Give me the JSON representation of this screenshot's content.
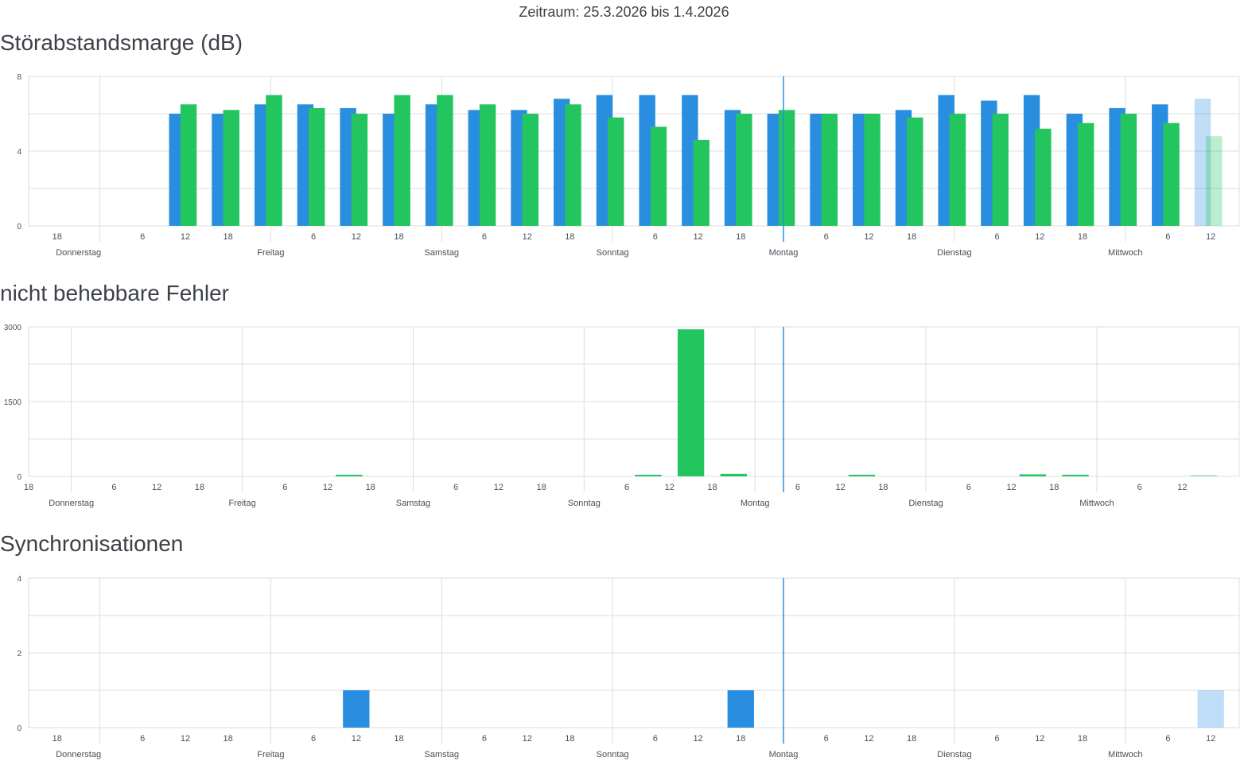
{
  "header": {
    "period": "Zeitraum: 25.3.2026 bis 1.4.2026"
  },
  "colors": {
    "downstream": "#2a8ee0",
    "upstream": "#22c55e",
    "now_line": "#2a8ee0",
    "grid": "#dddddd"
  },
  "chart_data": [
    {
      "id": "snr",
      "type": "bar",
      "title": "Störabstandsmarge (dB)",
      "ylim": [
        0,
        8
      ],
      "yticks": [
        0,
        4,
        8
      ],
      "x_start_hour": 14,
      "x_end_hour": 178,
      "bucket_hours": 6,
      "now_hour": 120,
      "hour_tick_labels": [
        {
          "h": 18,
          "label": "18"
        },
        {
          "h": 30,
          "label": "6"
        },
        {
          "h": 36,
          "label": "12"
        },
        {
          "h": 42,
          "label": "18"
        },
        {
          "h": 54,
          "label": "6"
        },
        {
          "h": 60,
          "label": "12"
        },
        {
          "h": 66,
          "label": "18"
        },
        {
          "h": 78,
          "label": "6"
        },
        {
          "h": 84,
          "label": "12"
        },
        {
          "h": 90,
          "label": "18"
        },
        {
          "h": 102,
          "label": "6"
        },
        {
          "h": 108,
          "label": "12"
        },
        {
          "h": 114,
          "label": "18"
        },
        {
          "h": 126,
          "label": "6"
        },
        {
          "h": 132,
          "label": "12"
        },
        {
          "h": 138,
          "label": "18"
        },
        {
          "h": 150,
          "label": "6"
        },
        {
          "h": 156,
          "label": "12"
        },
        {
          "h": 162,
          "label": "18"
        },
        {
          "h": 174,
          "label": "6"
        },
        {
          "h": 180,
          "label": "12"
        }
      ],
      "day_labels": [
        {
          "h": 21,
          "label": "Donnerstag"
        },
        {
          "h": 48,
          "label": "Freitag"
        },
        {
          "h": 72,
          "label": "Samstag"
        },
        {
          "h": 96,
          "label": "Sonntag"
        },
        {
          "h": 120,
          "label": "Montag"
        },
        {
          "h": 144,
          "label": "Dienstag"
        },
        {
          "h": 168,
          "label": "Mittwoch"
        }
      ],
      "day_boundaries": [
        24,
        48,
        72,
        96,
        120,
        144,
        168
      ],
      "buckets": [
        36,
        42,
        48,
        54,
        60,
        66,
        72,
        78,
        84,
        90,
        96,
        102,
        108,
        114,
        120,
        126,
        132,
        138,
        144,
        150,
        156,
        162,
        168,
        174,
        180
      ],
      "series": [
        {
          "key": "downstream",
          "offset": 0,
          "values": [
            6,
            6,
            6.5,
            6.5,
            6.3,
            6,
            6.5,
            6.2,
            6.2,
            6.8,
            7,
            7,
            7,
            6.2,
            6,
            6,
            6,
            6.2,
            7,
            6.7,
            7,
            6,
            6.3,
            6.5,
            6.8
          ]
        },
        {
          "key": "upstream",
          "offset": 1,
          "values": [
            6.5,
            6.2,
            7,
            6.3,
            6,
            7,
            7,
            6.5,
            6,
            6.5,
            5.8,
            5.3,
            4.6,
            6,
            6.2,
            6,
            6,
            5.8,
            6,
            6,
            5.2,
            5.5,
            6,
            5.5,
            4.8
          ]
        }
      ],
      "current_bucket": 180
    },
    {
      "id": "fec",
      "type": "bar",
      "title": "nicht behebbare Fehler",
      "ylim": [
        0,
        3000
      ],
      "yticks": [
        0,
        1500,
        3000
      ],
      "x_start_hour": 14,
      "x_end_hour": 182,
      "bucket_hours": 6,
      "now_hour": 120,
      "hour_tick_labels": [
        {
          "h": 14,
          "label": "18"
        },
        {
          "h": 26,
          "label": "6"
        },
        {
          "h": 32,
          "label": "12"
        },
        {
          "h": 38,
          "label": "18"
        },
        {
          "h": 50,
          "label": "6"
        },
        {
          "h": 56,
          "label": "12"
        },
        {
          "h": 62,
          "label": "18"
        },
        {
          "h": 74,
          "label": "6"
        },
        {
          "h": 80,
          "label": "12"
        },
        {
          "h": 86,
          "label": "18"
        },
        {
          "h": 98,
          "label": "6"
        },
        {
          "h": 104,
          "label": "12"
        },
        {
          "h": 110,
          "label": "18"
        },
        {
          "h": 122,
          "label": "6"
        },
        {
          "h": 128,
          "label": "12"
        },
        {
          "h": 134,
          "label": "18"
        },
        {
          "h": 146,
          "label": "6"
        },
        {
          "h": 152,
          "label": "12"
        },
        {
          "h": 158,
          "label": "18"
        },
        {
          "h": 170,
          "label": "6"
        },
        {
          "h": 176,
          "label": "12"
        }
      ],
      "day_labels": [
        {
          "h": 20,
          "label": "Donnerstag"
        },
        {
          "h": 44,
          "label": "Freitag"
        },
        {
          "h": 68,
          "label": "Samstag"
        },
        {
          "h": 92,
          "label": "Sonntag"
        },
        {
          "h": 116,
          "label": "Montag"
        },
        {
          "h": 140,
          "label": "Dienstag"
        },
        {
          "h": 164,
          "label": "Mittwoch"
        }
      ],
      "day_boundaries": [
        20,
        44,
        68,
        92,
        116,
        140,
        164
      ],
      "buckets": [
        20,
        44,
        68,
        92,
        116,
        140,
        164,
        170
      ],
      "series": [
        {
          "key": "upstream",
          "offset": 0,
          "points": [
            {
              "h": 59,
              "v": 20
            },
            {
              "h": 101,
              "v": 10
            },
            {
              "h": 107,
              "v": 2950
            },
            {
              "h": 113,
              "v": 50
            },
            {
              "h": 131,
              "v": 5
            },
            {
              "h": 155,
              "v": 40
            },
            {
              "h": 161,
              "v": 8
            },
            {
              "h": 179,
              "v": 30
            }
          ]
        }
      ],
      "current_bucket": 179
    },
    {
      "id": "sync",
      "type": "bar",
      "title": "Synchronisationen",
      "ylim": [
        0,
        4
      ],
      "yticks": [
        0,
        2,
        4
      ],
      "x_start_hour": 14,
      "x_end_hour": 178,
      "bucket_hours": 6,
      "now_hour": 120,
      "hour_tick_labels": [
        {
          "h": 18,
          "label": "18"
        },
        {
          "h": 30,
          "label": "6"
        },
        {
          "h": 36,
          "label": "12"
        },
        {
          "h": 42,
          "label": "18"
        },
        {
          "h": 54,
          "label": "6"
        },
        {
          "h": 60,
          "label": "12"
        },
        {
          "h": 66,
          "label": "18"
        },
        {
          "h": 78,
          "label": "6"
        },
        {
          "h": 84,
          "label": "12"
        },
        {
          "h": 90,
          "label": "18"
        },
        {
          "h": 102,
          "label": "6"
        },
        {
          "h": 108,
          "label": "12"
        },
        {
          "h": 114,
          "label": "18"
        },
        {
          "h": 126,
          "label": "6"
        },
        {
          "h": 132,
          "label": "12"
        },
        {
          "h": 138,
          "label": "18"
        },
        {
          "h": 150,
          "label": "6"
        },
        {
          "h": 156,
          "label": "12"
        },
        {
          "h": 162,
          "label": "18"
        },
        {
          "h": 174,
          "label": "6"
        },
        {
          "h": 180,
          "label": "12"
        }
      ],
      "day_labels": [
        {
          "h": 21,
          "label": "Donnerstag"
        },
        {
          "h": 48,
          "label": "Freitag"
        },
        {
          "h": 72,
          "label": "Samstag"
        },
        {
          "h": 96,
          "label": "Sonntag"
        },
        {
          "h": 120,
          "label": "Montag"
        },
        {
          "h": 144,
          "label": "Dienstag"
        },
        {
          "h": 168,
          "label": "Mittwoch"
        }
      ],
      "day_boundaries": [
        24,
        48,
        72,
        96,
        120,
        144,
        168
      ],
      "series": [
        {
          "key": "downstream",
          "offset": 0,
          "points": [
            {
              "h": 60,
              "v": 1
            },
            {
              "h": 114,
              "v": 1
            },
            {
              "h": 180,
              "v": 1
            }
          ]
        }
      ],
      "current_bucket": 180
    }
  ]
}
